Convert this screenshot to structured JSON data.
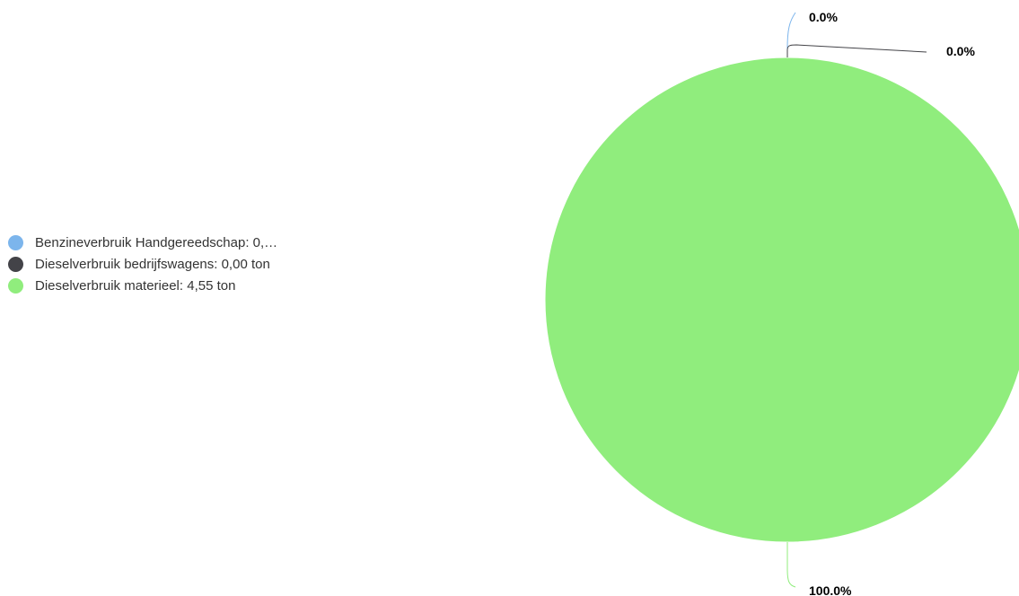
{
  "chart_data": {
    "type": "pie",
    "categories": [
      "Benzineverbruik Handgereedschap",
      "Dieselverbruik bedrijfswagens",
      "Dieselverbruik materieel"
    ],
    "values": [
      0,
      0,
      4.55
    ],
    "unit": "ton",
    "colors": [
      "#7cb5ec",
      "#434348",
      "#90ed7d"
    ],
    "data_labels": [
      "0.0%",
      "0.0%",
      "100.0%"
    ],
    "legend": {
      "placement": "left",
      "entries": [
        "Benzineverbruik Handgereedschap: 0,…",
        "Dieselverbruik bedrijfswagens: 0,00 ton",
        "Dieselverbruik materieel: 4,55 ton"
      ]
    }
  }
}
